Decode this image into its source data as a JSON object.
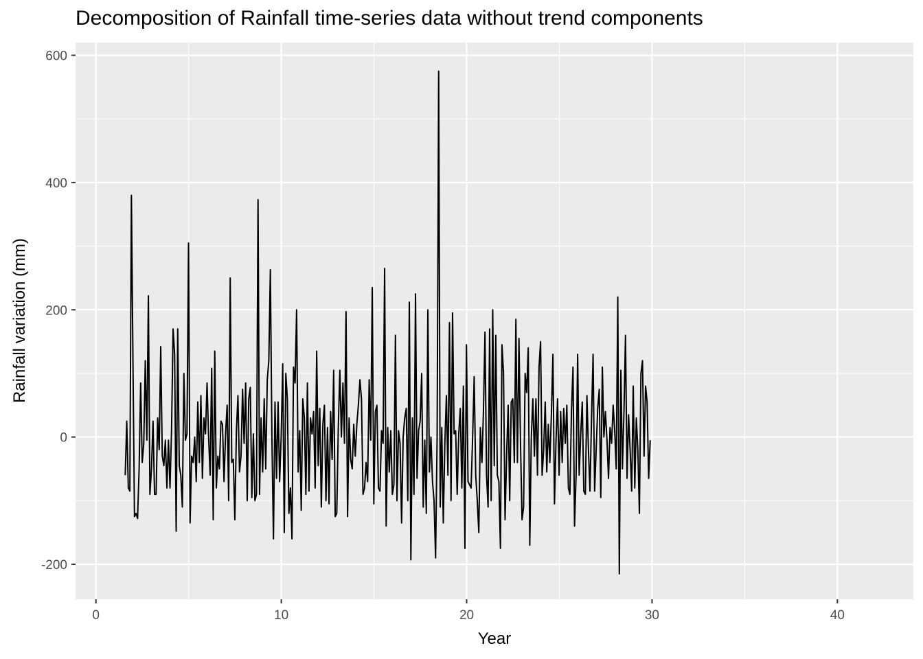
{
  "chart_data": {
    "type": "line",
    "title": "Decomposition of Rainfall time-series data without trend components",
    "xlabel": "Year",
    "ylabel": "Rainfall variation (mm)",
    "xlim": [
      -1.1,
      44.1
    ],
    "ylim": [
      -255,
      620
    ],
    "x_ticks": [
      0,
      10,
      20,
      30,
      40
    ],
    "y_ticks": [
      -200,
      0,
      200,
      400,
      600
    ],
    "x_tick_labels": [
      "0",
      "10",
      "20",
      "30",
      "40"
    ],
    "y_tick_labels": [
      "-200",
      "0",
      "200",
      "400",
      "600"
    ],
    "grid": true,
    "legend": "none",
    "series": [
      {
        "color": "#000000",
        "x_start": 1.58,
        "x_step": 0.0833,
        "values": [
          -60,
          25,
          -80,
          -85,
          380,
          120,
          -125,
          -120,
          -128,
          -50,
          85,
          -40,
          -10,
          120,
          -5,
          222,
          -90,
          -50,
          25,
          -90,
          -90,
          30,
          -20,
          142,
          -30,
          -45,
          -5,
          -80,
          -5,
          -80,
          10,
          170,
          130,
          -148,
          170,
          -45,
          -60,
          -110,
          100,
          -5,
          5,
          305,
          -135,
          -30,
          -40,
          0,
          -70,
          55,
          -40,
          65,
          -65,
          30,
          5,
          85,
          0,
          -60,
          108,
          -130,
          135,
          -80,
          -30,
          -50,
          25,
          20,
          -70,
          5,
          50,
          -100,
          250,
          -40,
          -35,
          -130,
          10,
          65,
          -55,
          -30,
          75,
          -10,
          85,
          -100,
          60,
          78,
          -95,
          5,
          -100,
          -90,
          373,
          -90,
          30,
          -55,
          60,
          -50,
          90,
          120,
          263,
          0,
          -160,
          55,
          -65,
          55,
          -70,
          0,
          115,
          -150,
          100,
          60,
          -120,
          -80,
          -160,
          110,
          85,
          200,
          -55,
          10,
          -115,
          60,
          30,
          -90,
          85,
          -85,
          30,
          5,
          40,
          -80,
          135,
          -45,
          45,
          -110,
          20,
          50,
          -100,
          15,
          -105,
          40,
          -35,
          105,
          -125,
          -120,
          15,
          105,
          0,
          85,
          -10,
          197,
          -125,
          30,
          -35,
          -50,
          20,
          -30,
          20,
          50,
          90,
          60,
          -90,
          -80,
          -40,
          -70,
          90,
          -5,
          235,
          -105,
          40,
          50,
          -80,
          -85,
          10,
          -10,
          265,
          -140,
          15,
          -55,
          10,
          -90,
          -75,
          160,
          -100,
          10,
          -10,
          -135,
          0,
          30,
          45,
          -100,
          212,
          -193,
          30,
          -90,
          225,
          -65,
          10,
          25,
          100,
          -110,
          -5,
          -120,
          200,
          -55,
          0,
          -70,
          -100,
          -190,
          0,
          575,
          -110,
          15,
          -135,
          -10,
          65,
          -60,
          180,
          -100,
          195,
          5,
          10,
          -90,
          5,
          45,
          -80,
          80,
          -175,
          145,
          -70,
          -75,
          -80,
          0,
          95,
          -60,
          -100,
          -150,
          15,
          -40,
          40,
          165,
          -60,
          -110,
          170,
          -100,
          200,
          -45,
          160,
          -60,
          -70,
          -175,
          145,
          100,
          -130,
          -30,
          50,
          -100,
          55,
          60,
          -40,
          185,
          -40,
          155,
          -10,
          -130,
          -110,
          100,
          70,
          140,
          -170,
          0,
          60,
          -30,
          60,
          -60,
          110,
          150,
          -60,
          -20,
          55,
          -55,
          20,
          -40,
          35,
          130,
          -105,
          -5,
          60,
          -60,
          40,
          -40,
          45,
          -10,
          50,
          -80,
          -90,
          40,
          110,
          -140,
          -60,
          130,
          -60,
          5,
          55,
          -85,
          -90,
          65,
          -20,
          -85,
          30,
          130,
          -85,
          -20,
          45,
          75,
          -95,
          110,
          0,
          40,
          -5,
          -65,
          15,
          -10,
          50,
          10,
          -50,
          220,
          -215,
          105,
          -50,
          40,
          160,
          -65,
          35,
          -20,
          -85,
          80,
          -80,
          30,
          -20,
          -120,
          100,
          120,
          -30,
          80,
          55,
          -65,
          -5
        ]
      }
    ]
  }
}
